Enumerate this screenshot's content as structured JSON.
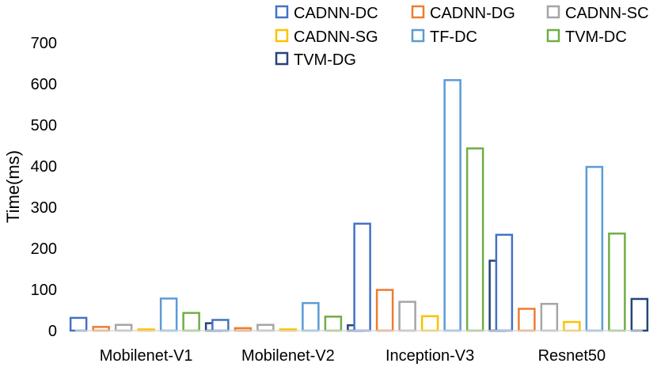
{
  "chart_data": {
    "type": "bar",
    "title": "",
    "xlabel": "",
    "ylabel": "Time(ms)",
    "ylim": [
      0,
      700
    ],
    "yticks": [
      0,
      100,
      200,
      300,
      400,
      500,
      600,
      700
    ],
    "grid": false,
    "legend_position": "top-right",
    "categories": [
      "Mobilenet-V1",
      "Mobilenet-V2",
      "Inception-V3",
      "Resnet50"
    ],
    "series": [
      {
        "name": "CADNN-DC",
        "color": "#4472C4",
        "values": [
          31,
          26,
          260,
          233
        ]
      },
      {
        "name": "CADNN-DG",
        "color": "#ED7D31",
        "values": [
          9,
          6,
          99,
          53
        ]
      },
      {
        "name": "CADNN-SC",
        "color": "#A5A5A5",
        "values": [
          14,
          14,
          70,
          65
        ]
      },
      {
        "name": "CADNN-SG",
        "color": "#FFC000",
        "values": [
          3,
          3,
          35,
          21
        ]
      },
      {
        "name": "TF-DC",
        "color": "#5B9BD5",
        "values": [
          78,
          67,
          609,
          398
        ]
      },
      {
        "name": "TVM-DC",
        "color": "#70AD47",
        "values": [
          43,
          34,
          443,
          236
        ]
      },
      {
        "name": "TVM-DG",
        "color": "#264478",
        "values": [
          18,
          13,
          170,
          77
        ]
      }
    ]
  }
}
